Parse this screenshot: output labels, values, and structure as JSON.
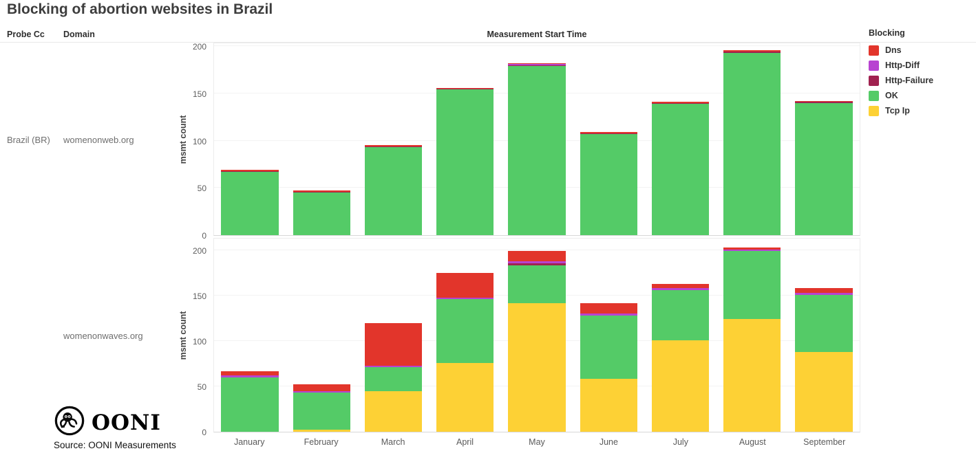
{
  "title": "Blocking of abortion websites in Brazil",
  "header": {
    "probe_cc": "Probe Cc",
    "domain": "Domain",
    "x_title": "Measurement Start Time"
  },
  "rows": {
    "probe_value": "Brazil (BR)",
    "facet1_domain": "womenonweb.org",
    "facet2_domain": "womenonwaves.org"
  },
  "colors": {
    "dns": "#e2352b",
    "http_diff": "#b843d1",
    "http_failure": "#a02250",
    "ok": "#54cb67",
    "tcp_ip": "#fdd135"
  },
  "legend": {
    "title": "Blocking",
    "items": [
      {
        "label": "Dns",
        "color_key": "dns"
      },
      {
        "label": "Http-Diff",
        "color_key": "http_diff"
      },
      {
        "label": "Http-Failure",
        "color_key": "http_failure"
      },
      {
        "label": "OK",
        "color_key": "ok"
      },
      {
        "label": "Tcp Ip",
        "color_key": "tcp_ip"
      }
    ]
  },
  "footer": {
    "logo_text": "OONI",
    "source": "Source: OONI Measurements"
  },
  "chart_data": {
    "type": "bar",
    "stacked": true,
    "x_title": "Measurement Start Time",
    "ylabel": "msmt count",
    "yticks": [
      0,
      50,
      100,
      150,
      200
    ],
    "ylim": [
      0,
      210
    ],
    "grid": true,
    "legend_position": "top-right",
    "categories": [
      "January",
      "February",
      "March",
      "April",
      "May",
      "June",
      "July",
      "August",
      "September"
    ],
    "stack_order_bottom_to_top": [
      "Tcp Ip",
      "OK",
      "Http-Failure",
      "Http-Diff",
      "Dns"
    ],
    "facets": [
      {
        "probe_cc": "Brazil (BR)",
        "domain": "womenonweb.org",
        "series": [
          {
            "name": "Tcp Ip",
            "color_key": "tcp_ip",
            "values": [
              0,
              0,
              0,
              0,
              0,
              0,
              0,
              0,
              0
            ]
          },
          {
            "name": "OK",
            "color_key": "ok",
            "values": [
              67,
              45,
              93,
              154,
              179,
              107,
              139,
              193,
              140
            ]
          },
          {
            "name": "Http-Failure",
            "color_key": "http_failure",
            "values": [
              1,
              1,
              1,
              1,
              1,
              1,
              1,
              1,
              1
            ]
          },
          {
            "name": "Http-Diff",
            "color_key": "http_diff",
            "values": [
              0,
              0,
              0,
              0,
              1,
              0,
              0,
              0,
              0
            ]
          },
          {
            "name": "Dns",
            "color_key": "dns",
            "values": [
              1,
              1,
              1,
              1,
              1,
              1,
              1,
              2,
              1
            ]
          }
        ]
      },
      {
        "probe_cc": "Brazil (BR)",
        "domain": "womenonwaves.org",
        "series": [
          {
            "name": "Tcp Ip",
            "color_key": "tcp_ip",
            "values": [
              0,
              2,
              45,
              76,
              142,
              58,
              101,
              124,
              88
            ]
          },
          {
            "name": "OK",
            "color_key": "ok",
            "values": [
              60,
              41,
              26,
              70,
              41,
              70,
              55,
              75,
              63
            ]
          },
          {
            "name": "Http-Failure",
            "color_key": "http_failure",
            "values": [
              0,
              0,
              0,
              0,
              3,
              0,
              0,
              0,
              0
            ]
          },
          {
            "name": "Http-Diff",
            "color_key": "http_diff",
            "values": [
              2,
              2,
              2,
              2,
              2,
              2,
              2,
              2,
              2
            ]
          },
          {
            "name": "Dns",
            "color_key": "dns",
            "values": [
              5,
              7,
              47,
              27,
              11,
              12,
              5,
              2,
              5
            ]
          }
        ]
      }
    ]
  }
}
